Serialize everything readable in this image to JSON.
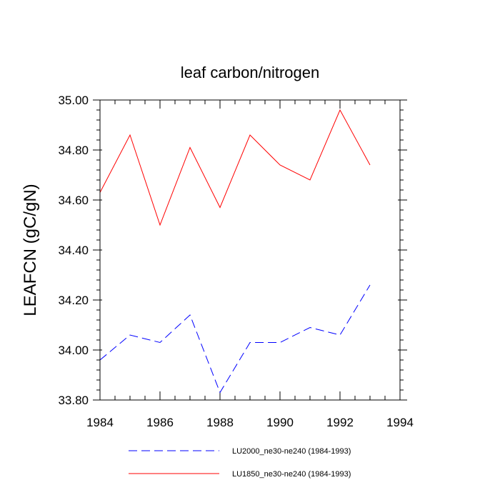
{
  "chart_data": {
    "type": "line",
    "title": "leaf carbon/nitrogen",
    "xlabel": "",
    "ylabel": "LEAFCN  (gC/gN)",
    "xlim": [
      1984,
      1994
    ],
    "ylim": [
      33.8,
      35.0
    ],
    "x_ticks": [
      "1984",
      "1986",
      "1988",
      "1990",
      "1992",
      "1994"
    ],
    "y_ticks": [
      "33.80",
      "34.00",
      "34.20",
      "34.40",
      "34.60",
      "34.80",
      "35.00"
    ],
    "x": [
      1984,
      1985,
      1986,
      1987,
      1988,
      1989,
      1990,
      1991,
      1992,
      1993
    ],
    "series": [
      {
        "name": "LU2000_ne30-ne240 (1984-1993)",
        "color": "#0000ff",
        "dash": "dashed",
        "values": [
          33.96,
          34.06,
          34.03,
          34.14,
          33.83,
          34.03,
          34.03,
          34.09,
          34.06,
          34.26
        ]
      },
      {
        "name": "LU1850_ne30-ne240 (1984-1993)",
        "color": "#ff0000",
        "dash": "solid",
        "values": [
          34.63,
          34.86,
          34.5,
          34.81,
          34.57,
          34.86,
          34.74,
          34.68,
          34.96,
          34.74
        ]
      }
    ],
    "grid": false,
    "legend_position": "bottom"
  }
}
